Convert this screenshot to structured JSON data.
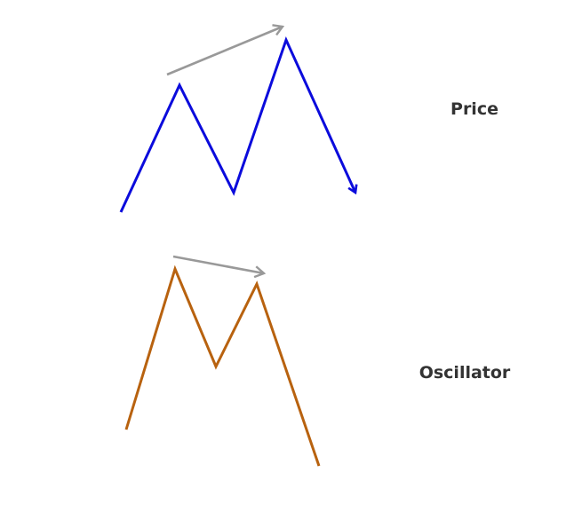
{
  "labels": {
    "price": "Price",
    "oscillator": "Oscillator"
  },
  "colors": {
    "price_line": "#0b0bdc",
    "oscillator_line": "#b8620f",
    "trend_arrow": "#999999",
    "label_text": "#333333",
    "background": "#ffffff"
  }
}
